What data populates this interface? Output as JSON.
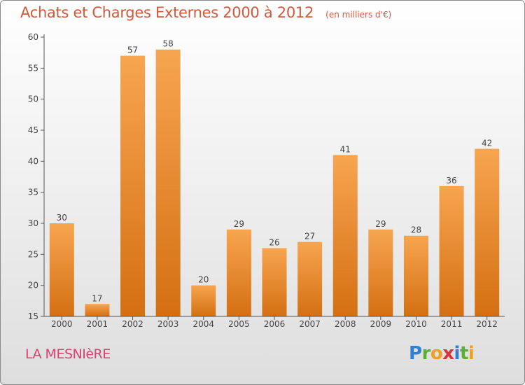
{
  "title": "Achats et Charges Externes 2000 à 2012",
  "subtitle": "(en milliers d'€)",
  "place_name": "LA MESNIèRE",
  "brand": {
    "text": "Proxiti",
    "letters": [
      {
        "ch": "P",
        "color": "#2f80d0"
      },
      {
        "ch": "r",
        "color": "#5cb030"
      },
      {
        "ch": "o",
        "color": "#f0a020"
      },
      {
        "ch": "x",
        "color": "#e0303a"
      },
      {
        "ch": "i",
        "color": "#2f80d0"
      },
      {
        "ch": "t",
        "color": "#5cb030"
      },
      {
        "ch": "i",
        "color": "#f0a020"
      }
    ]
  },
  "colors": {
    "title": "#d2583a",
    "place": "#e03e6e",
    "bar_light": "#f7a550",
    "bar_dark": "#d46f12",
    "axis": "#555555"
  },
  "chart_data": {
    "type": "bar",
    "categories": [
      "2000",
      "2001",
      "2002",
      "2003",
      "2004",
      "2005",
      "2006",
      "2007",
      "2008",
      "2009",
      "2010",
      "2011",
      "2012"
    ],
    "values": [
      30,
      17,
      57,
      58,
      20,
      29,
      26,
      27,
      41,
      29,
      28,
      36,
      42
    ],
    "ylim": [
      15,
      60
    ],
    "yticks": [
      15,
      20,
      25,
      30,
      35,
      40,
      45,
      50,
      55,
      60
    ],
    "grid": false,
    "legend": "none"
  }
}
